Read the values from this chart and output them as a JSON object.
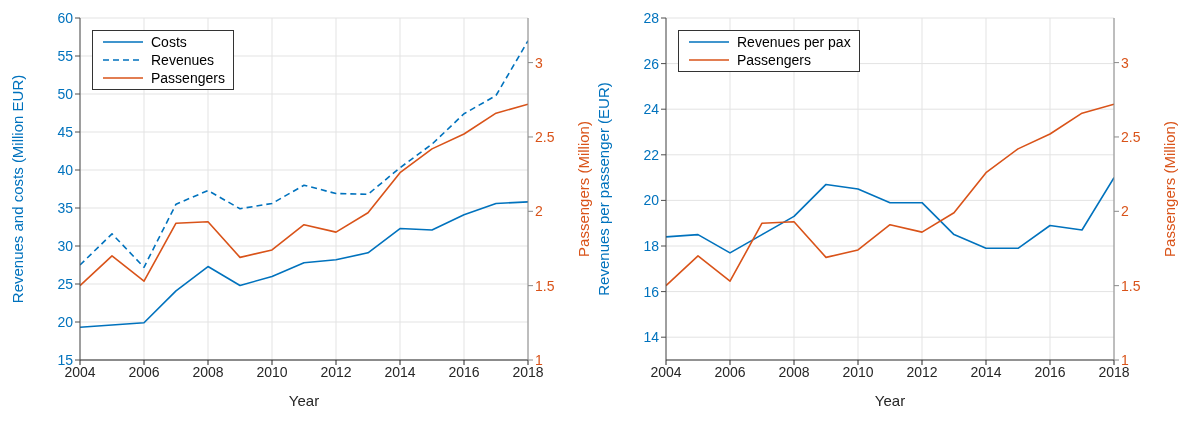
{
  "chart_data": [
    {
      "type": "line",
      "x": [
        2004,
        2005,
        2006,
        2007,
        2008,
        2009,
        2010,
        2011,
        2012,
        2013,
        2014,
        2015,
        2016,
        2017,
        2018
      ],
      "series": [
        {
          "name": "Costs",
          "color": "#0072bd",
          "line_style": "solid",
          "values": [
            19.3,
            19.6,
            19.9,
            24.1,
            27.3,
            24.8,
            26.0,
            27.8,
            28.2,
            29.1,
            32.3,
            32.1,
            34.1,
            35.6,
            35.8
          ]
        },
        {
          "name": "Revenues",
          "color": "#0072bd",
          "line_style": "dashed",
          "values": [
            27.5,
            31.6,
            27.2,
            35.5,
            37.3,
            34.9,
            35.6,
            38.0,
            36.9,
            36.8,
            40.3,
            43.4,
            47.4,
            49.8,
            57.0
          ]
        },
        {
          "name": "Passengers",
          "color": "#d95319",
          "axis": "y2",
          "line_style": "solid",
          "values": [
            1.5,
            1.7,
            1.53,
            1.92,
            1.93,
            1.69,
            1.74,
            1.91,
            1.86,
            1.99,
            2.26,
            2.42,
            2.52,
            2.66,
            2.72
          ]
        }
      ],
      "xlabel": "Year",
      "ylabel": "Revenues and costs (Million EUR)",
      "y2label": "Passengers (Million)",
      "xlim": [
        2004,
        2018
      ],
      "xticks": [
        2004,
        2006,
        2008,
        2010,
        2012,
        2014,
        2016,
        2018
      ],
      "ylim": [
        15,
        60
      ],
      "yticks": [
        15,
        20,
        25,
        30,
        35,
        40,
        45,
        50,
        55,
        60
      ],
      "y2lim": [
        1,
        3.3
      ],
      "y2ticks": [
        1,
        1.5,
        2,
        2.5,
        3
      ],
      "grid": true,
      "legend": "top left"
    },
    {
      "type": "line",
      "x": [
        2004,
        2005,
        2006,
        2007,
        2008,
        2009,
        2010,
        2011,
        2012,
        2013,
        2014,
        2015,
        2016,
        2017,
        2018
      ],
      "series": [
        {
          "name": "Revenues per pax",
          "color": "#0072bd",
          "line_style": "solid",
          "values": [
            18.4,
            18.5,
            17.7,
            18.5,
            19.3,
            20.7,
            20.5,
            19.9,
            19.9,
            18.5,
            17.9,
            17.9,
            18.9,
            18.7,
            21.0
          ]
        },
        {
          "name": "Passengers",
          "color": "#d95319",
          "axis": "y2",
          "line_style": "solid",
          "values": [
            1.5,
            1.7,
            1.53,
            1.92,
            1.93,
            1.69,
            1.74,
            1.91,
            1.86,
            1.99,
            2.26,
            2.42,
            2.52,
            2.66,
            2.72
          ]
        }
      ],
      "xlabel": "Year",
      "ylabel": "Revenues per passenger (EUR)",
      "y2label": "Passengers (Million)",
      "xlim": [
        2004,
        2018
      ],
      "xticks": [
        2004,
        2006,
        2008,
        2010,
        2012,
        2014,
        2016,
        2018
      ],
      "ylim": [
        13,
        28
      ],
      "yticks": [
        14,
        16,
        18,
        20,
        22,
        24,
        26,
        28
      ],
      "y2lim": [
        1,
        3.3
      ],
      "y2ticks": [
        1,
        1.5,
        2,
        2.5,
        3
      ],
      "grid": true,
      "legend": "top left"
    }
  ]
}
